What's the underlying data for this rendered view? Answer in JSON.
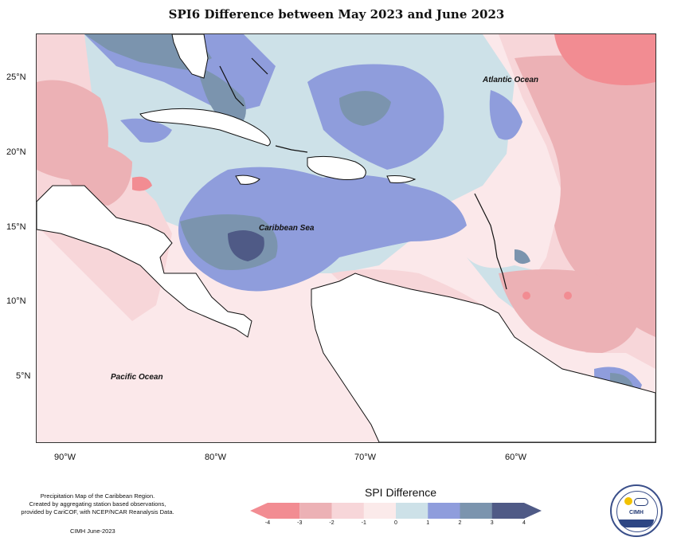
{
  "title": "SPI6 Difference between May 2023 and June 2023",
  "lat_ticks": [
    "25°N",
    "20°N",
    "15°N",
    "10°N",
    "5°N"
  ],
  "lon_ticks": [
    "90°W",
    "80°W",
    "70°W",
    "60°W"
  ],
  "labels": {
    "atlantic": "Atlantic Ocean",
    "caribbean": "Caribbean Sea",
    "pacific": "Pacific Ocean"
  },
  "credit": {
    "line1": "Precipitation Map of the Caribbean Region.",
    "line2": "Created by aggregating station based observations,",
    "line3": "provided by CariCOF, with NCEP/NCAR Reanalysis Data.",
    "date": "CIMH June-2023"
  },
  "legend": {
    "title": "SPI Difference",
    "ticks": [
      "-4",
      "-3",
      "-2",
      "-1",
      "0",
      "1",
      "2",
      "3",
      "4"
    ],
    "colors": [
      "#f28c92",
      "#ecb1b5",
      "#f7d6d9",
      "#fbeaea",
      "#cde1e8",
      "#8f9ddc",
      "#7b94ae",
      "#4f5a86"
    ]
  },
  "logo": {
    "text": "CIMH"
  },
  "colors": {
    "land_outline": "#111111",
    "ocean_background": "#fbe8ea"
  }
}
